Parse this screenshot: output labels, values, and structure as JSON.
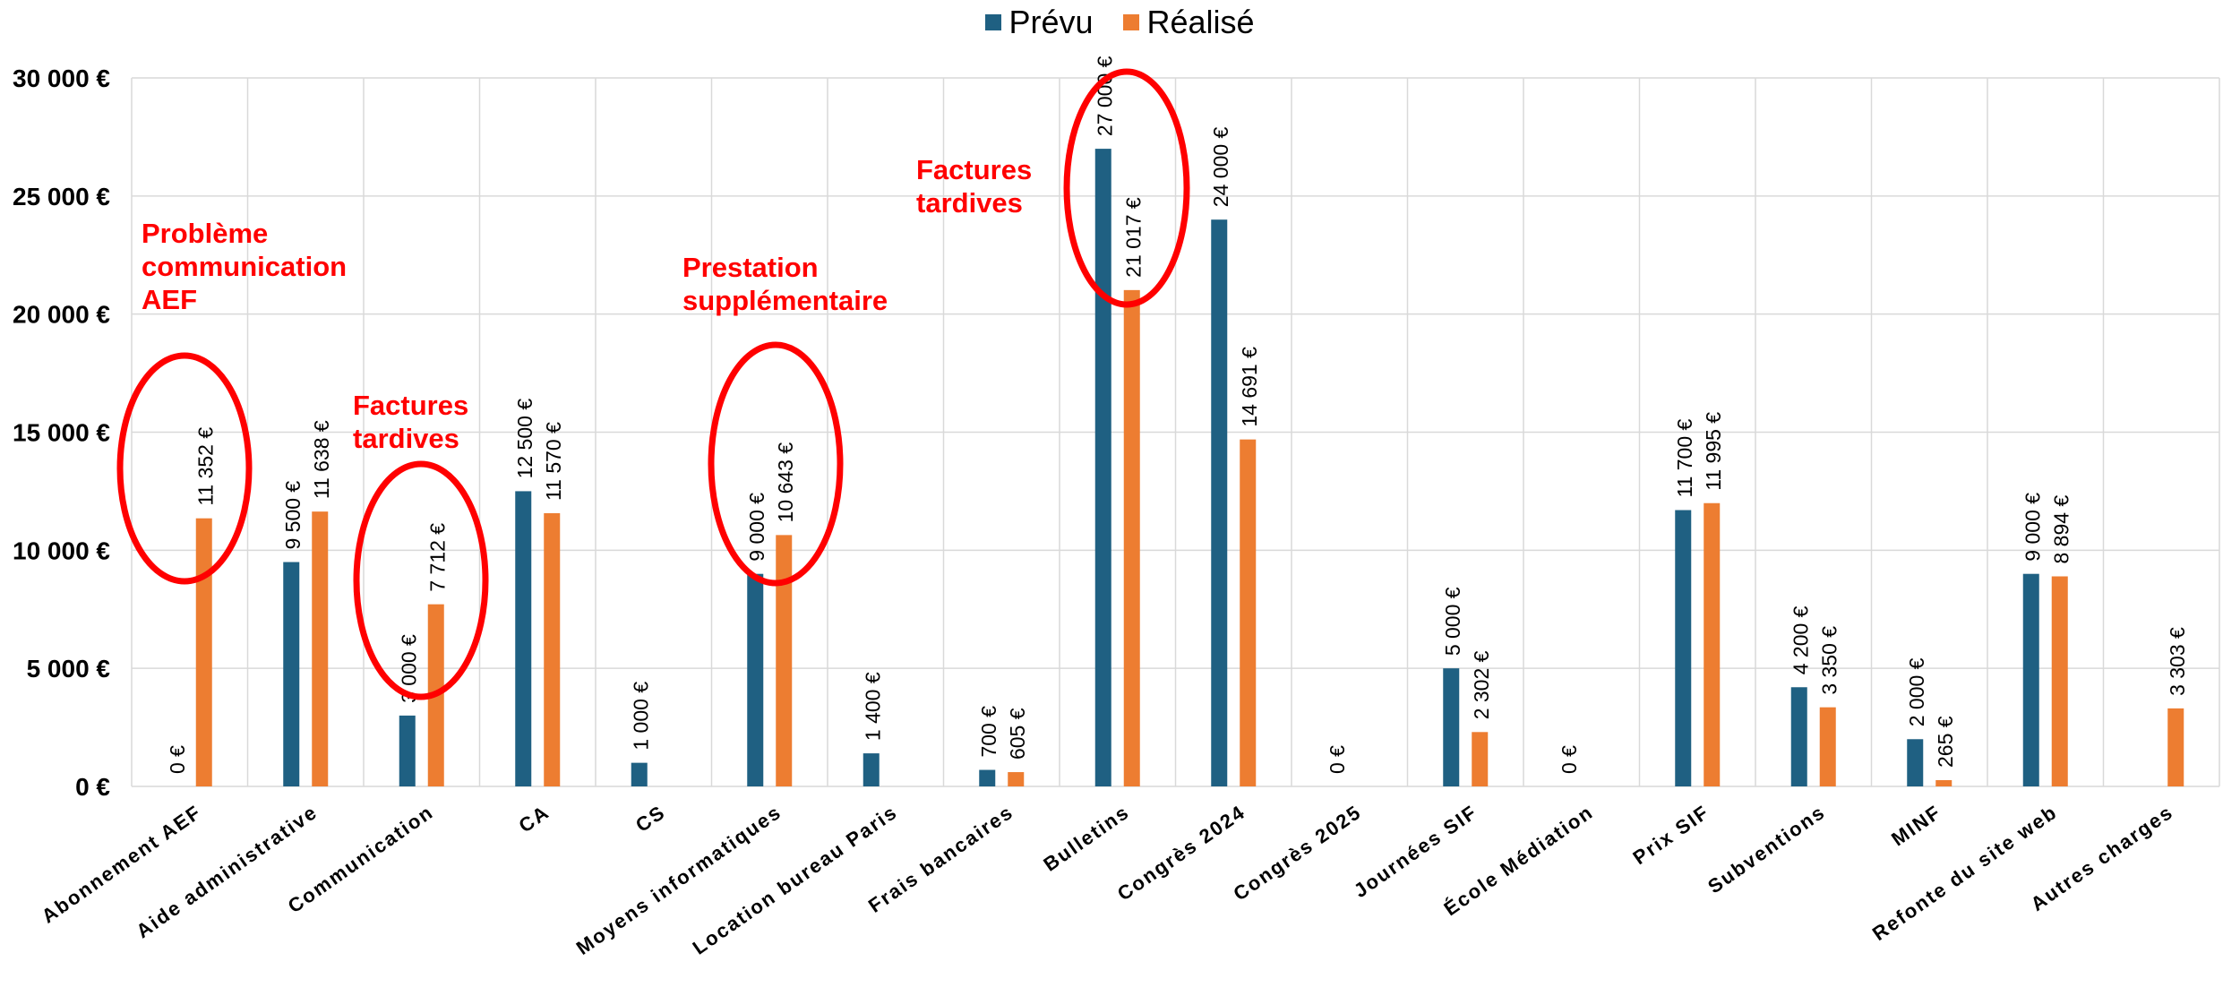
{
  "chart_data": {
    "type": "bar",
    "categories": [
      "Abonnement AEF",
      "Aide administrative",
      "Communication",
      "CA",
      "CS",
      "Moyens informatiques",
      "Location bureau Paris",
      "Frais bancaires",
      "Bulletins",
      "Congrès 2024",
      "Congrès 2025",
      "Journées SIF",
      "École Médiation",
      "Prix SIF",
      "Subventions",
      "MINF",
      "Refonte du site web",
      "Autres charges"
    ],
    "series": [
      {
        "name": "Prévu",
        "color": "#1F6082",
        "values": [
          0,
          9500,
          3000,
          12500,
          1000,
          9000,
          1400,
          700,
          27000,
          24000,
          0,
          5000,
          0,
          11700,
          4200,
          2000,
          9000,
          null
        ],
        "labels": [
          "0 €",
          "9 500 €",
          "3 000 €",
          "12 500 €",
          "1 000 €",
          "9 000 €",
          "1 400 €",
          "700 €",
          "27 000 €",
          "24 000 €",
          "0 €",
          "5 000 €",
          "0 €",
          "11 700 €",
          "4 200 €",
          "2 000 €",
          "9 000 €",
          null
        ]
      },
      {
        "name": "Réalisé",
        "color": "#ED7D31",
        "values": [
          11352,
          11638,
          7712,
          11570,
          null,
          10643,
          null,
          605,
          21017,
          14691,
          null,
          2302,
          null,
          11995,
          3350,
          265,
          8894,
          3303
        ],
        "labels": [
          "11 352 €",
          "11 638 €",
          "7 712 €",
          "11 570 €",
          null,
          "10 643 €",
          null,
          "605 €",
          "21 017 €",
          "14 691 €",
          null,
          "2 302 €",
          null,
          "11 995 €",
          "3 350 €",
          "265 €",
          "8 894 €",
          "3 303 €"
        ]
      }
    ],
    "y_ticks": [
      0,
      5000,
      10000,
      15000,
      20000,
      25000,
      30000
    ],
    "y_tick_labels": [
      "0 €",
      "5 000 €",
      "10 000 €",
      "15 000 €",
      "20 000 €",
      "25 000 €",
      "30 000 €"
    ],
    "ylim": [
      0,
      30000
    ],
    "grid": true,
    "legend_position": "top-center",
    "title": "",
    "xlabel": "",
    "ylabel": ""
  },
  "annotations": [
    {
      "text": "Problème\ncommunication\nAEF",
      "color": "#FF0000"
    },
    {
      "text": "Factures\ntardives",
      "color": "#FF0000"
    },
    {
      "text": "Prestation\nsupplémentaire",
      "color": "#FF0000"
    },
    {
      "text": "Factures\ntardives",
      "color": "#FF0000"
    }
  ]
}
